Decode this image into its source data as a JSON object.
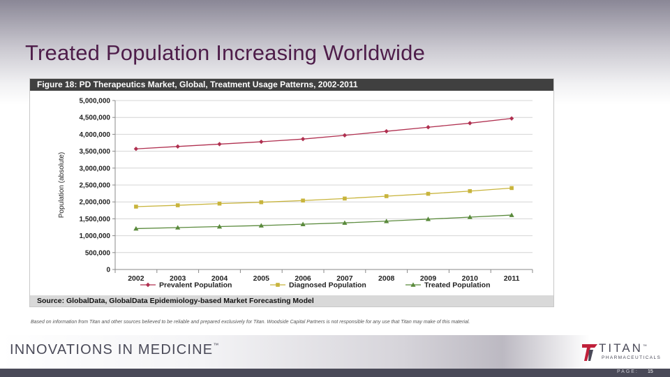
{
  "slide": {
    "title": "Treated Population Increasing Worldwide",
    "disclaimer": "Based on information  from Titan and other sources believed to be reliable and prepared  exclusively for Titan. Woodside Capital Partners is not responsible for any use that Titan may  make  of this material.",
    "tagline": "INNOVATIONS IN MEDICINE",
    "tagline_mark": "™",
    "logo_name": "TITAN",
    "logo_mark": "™",
    "logo_sub": "PHARMACEUTICALS",
    "page_label": "PAGE:",
    "page_number": "15"
  },
  "figure": {
    "header": "Figure 18:   PD Therapeutics Market, Global, Treatment Usage Patterns, 2002-2011",
    "source": "Source: GlobalData, GlobalData Epidemiology-based Market Forecasting Model"
  },
  "chart_data": {
    "type": "line",
    "title": "",
    "xlabel": "",
    "ylabel": "Population (absolute)",
    "x": [
      "2002",
      "2003",
      "2004",
      "2005",
      "2006",
      "2007",
      "2008",
      "2009",
      "2010",
      "2011"
    ],
    "ylim": [
      0,
      5000000
    ],
    "yticks": [
      0,
      500000,
      1000000,
      1500000,
      2000000,
      2500000,
      3000000,
      3500000,
      4000000,
      4500000,
      5000000
    ],
    "ytick_labels": [
      "0",
      "500,000",
      "1,000,000",
      "1,500,000",
      "2,000,000",
      "2,500,000",
      "3,000,000",
      "3,500,000",
      "4,000,000",
      "4,500,000",
      "5,000,000"
    ],
    "grid": true,
    "legend_position": "bottom",
    "series": [
      {
        "name": "Prevalent Population",
        "color": "#b03050",
        "marker": "diamond",
        "values": [
          3570000,
          3640000,
          3710000,
          3780000,
          3860000,
          3970000,
          4090000,
          4210000,
          4330000,
          4470000
        ]
      },
      {
        "name": "Diagnosed Population",
        "color": "#c8b43c",
        "marker": "square",
        "values": [
          1860000,
          1900000,
          1950000,
          1990000,
          2040000,
          2100000,
          2170000,
          2240000,
          2320000,
          2410000
        ]
      },
      {
        "name": "Treated Population",
        "color": "#5a8a3c",
        "marker": "triangle",
        "values": [
          1210000,
          1240000,
          1270000,
          1300000,
          1340000,
          1380000,
          1430000,
          1490000,
          1550000,
          1610000
        ]
      }
    ]
  }
}
